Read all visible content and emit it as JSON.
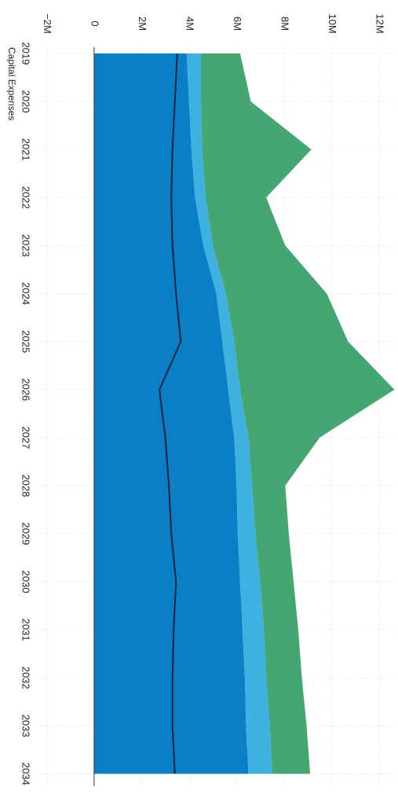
{
  "chart_data": {
    "type": "area",
    "y_label": "Capital Expenses",
    "categories": [
      "2019",
      "2020",
      "2021",
      "2022",
      "2023",
      "2024",
      "2025",
      "2026",
      "2027",
      "2028",
      "2029",
      "2030",
      "2031",
      "2032",
      "2033",
      "2034"
    ],
    "stacked": true,
    "series": [
      {
        "color": "#0b7fc6",
        "values": [
          3900000,
          4000000,
          4100000,
          4250000,
          4600000,
          5150000,
          5400000,
          5650000,
          5900000,
          6000000,
          6050000,
          6150000,
          6250000,
          6350000,
          6400000,
          6500000
        ]
      },
      {
        "color": "#3fb1e0",
        "values": [
          600000,
          500000,
          450000,
          450000,
          400000,
          400000,
          500000,
          500000,
          600000,
          650000,
          750000,
          850000,
          900000,
          900000,
          1000000,
          1000000
        ]
      },
      {
        "color": "#45a672",
        "values": [
          1650000,
          2100000,
          4600000,
          2550000,
          3050000,
          4250000,
          4800000,
          6500000,
          3000000,
          1400000,
          1400000,
          1400000,
          1450000,
          1500000,
          1550000,
          1600000
        ]
      }
    ],
    "line": {
      "color": "#1b2440",
      "values": [
        3500000,
        3400000,
        3300000,
        3250000,
        3300000,
        3450000,
        3650000,
        2750000,
        3000000,
        3150000,
        3250000,
        3450000,
        3350000,
        3300000,
        3300000,
        3400000
      ]
    },
    "ylim": [
      -2000000,
      12800000
    ],
    "yticks": [
      {
        "value": -2000000,
        "label": "−2M"
      },
      0,
      {
        "value": 2000000,
        "label": "2M"
      },
      {
        "value": 4000000,
        "label": "4M"
      },
      {
        "value": 6000000,
        "label": "6M"
      },
      {
        "value": 8000000,
        "label": "8M"
      },
      {
        "value": 10000000,
        "label": "10M"
      },
      {
        "value": 12000000,
        "label": "12M"
      }
    ],
    "grid": true
  }
}
